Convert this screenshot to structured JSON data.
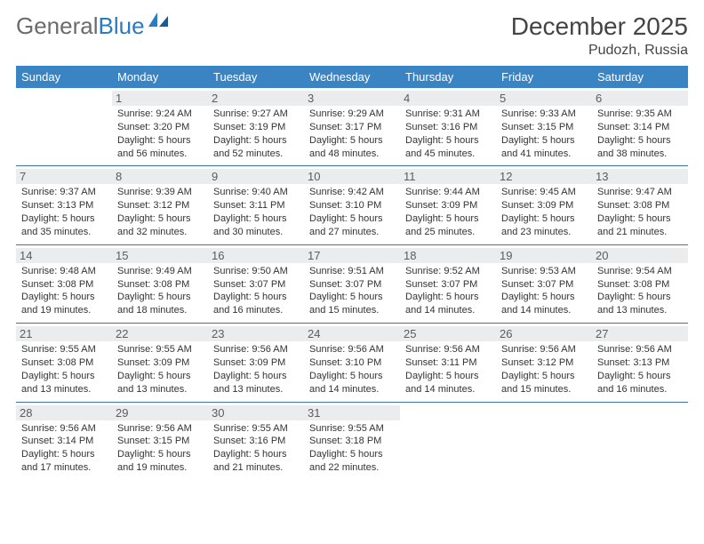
{
  "brand": {
    "part1": "General",
    "part2": "Blue"
  },
  "title": "December 2025",
  "location": "Pudozh, Russia",
  "header_bg": "#3b84c4",
  "header_color": "#ffffff",
  "daynum_bg": "#ebeced",
  "daynum_color": "#5c5c5c",
  "border_color": "#3b74a8",
  "text_color": "#333333",
  "font_size_cell": 11,
  "dayNames": [
    "Sunday",
    "Monday",
    "Tuesday",
    "Wednesday",
    "Thursday",
    "Friday",
    "Saturday"
  ],
  "weeks": [
    [
      {
        "n": "",
        "l1": "",
        "l2": "",
        "l3": "",
        "l4": ""
      },
      {
        "n": "1",
        "l1": "Sunrise: 9:24 AM",
        "l2": "Sunset: 3:20 PM",
        "l3": "Daylight: 5 hours",
        "l4": "and 56 minutes."
      },
      {
        "n": "2",
        "l1": "Sunrise: 9:27 AM",
        "l2": "Sunset: 3:19 PM",
        "l3": "Daylight: 5 hours",
        "l4": "and 52 minutes."
      },
      {
        "n": "3",
        "l1": "Sunrise: 9:29 AM",
        "l2": "Sunset: 3:17 PM",
        "l3": "Daylight: 5 hours",
        "l4": "and 48 minutes."
      },
      {
        "n": "4",
        "l1": "Sunrise: 9:31 AM",
        "l2": "Sunset: 3:16 PM",
        "l3": "Daylight: 5 hours",
        "l4": "and 45 minutes."
      },
      {
        "n": "5",
        "l1": "Sunrise: 9:33 AM",
        "l2": "Sunset: 3:15 PM",
        "l3": "Daylight: 5 hours",
        "l4": "and 41 minutes."
      },
      {
        "n": "6",
        "l1": "Sunrise: 9:35 AM",
        "l2": "Sunset: 3:14 PM",
        "l3": "Daylight: 5 hours",
        "l4": "and 38 minutes."
      }
    ],
    [
      {
        "n": "7",
        "l1": "Sunrise: 9:37 AM",
        "l2": "Sunset: 3:13 PM",
        "l3": "Daylight: 5 hours",
        "l4": "and 35 minutes."
      },
      {
        "n": "8",
        "l1": "Sunrise: 9:39 AM",
        "l2": "Sunset: 3:12 PM",
        "l3": "Daylight: 5 hours",
        "l4": "and 32 minutes."
      },
      {
        "n": "9",
        "l1": "Sunrise: 9:40 AM",
        "l2": "Sunset: 3:11 PM",
        "l3": "Daylight: 5 hours",
        "l4": "and 30 minutes."
      },
      {
        "n": "10",
        "l1": "Sunrise: 9:42 AM",
        "l2": "Sunset: 3:10 PM",
        "l3": "Daylight: 5 hours",
        "l4": "and 27 minutes."
      },
      {
        "n": "11",
        "l1": "Sunrise: 9:44 AM",
        "l2": "Sunset: 3:09 PM",
        "l3": "Daylight: 5 hours",
        "l4": "and 25 minutes."
      },
      {
        "n": "12",
        "l1": "Sunrise: 9:45 AM",
        "l2": "Sunset: 3:09 PM",
        "l3": "Daylight: 5 hours",
        "l4": "and 23 minutes."
      },
      {
        "n": "13",
        "l1": "Sunrise: 9:47 AM",
        "l2": "Sunset: 3:08 PM",
        "l3": "Daylight: 5 hours",
        "l4": "and 21 minutes."
      }
    ],
    [
      {
        "n": "14",
        "l1": "Sunrise: 9:48 AM",
        "l2": "Sunset: 3:08 PM",
        "l3": "Daylight: 5 hours",
        "l4": "and 19 minutes."
      },
      {
        "n": "15",
        "l1": "Sunrise: 9:49 AM",
        "l2": "Sunset: 3:08 PM",
        "l3": "Daylight: 5 hours",
        "l4": "and 18 minutes."
      },
      {
        "n": "16",
        "l1": "Sunrise: 9:50 AM",
        "l2": "Sunset: 3:07 PM",
        "l3": "Daylight: 5 hours",
        "l4": "and 16 minutes."
      },
      {
        "n": "17",
        "l1": "Sunrise: 9:51 AM",
        "l2": "Sunset: 3:07 PM",
        "l3": "Daylight: 5 hours",
        "l4": "and 15 minutes."
      },
      {
        "n": "18",
        "l1": "Sunrise: 9:52 AM",
        "l2": "Sunset: 3:07 PM",
        "l3": "Daylight: 5 hours",
        "l4": "and 14 minutes."
      },
      {
        "n": "19",
        "l1": "Sunrise: 9:53 AM",
        "l2": "Sunset: 3:07 PM",
        "l3": "Daylight: 5 hours",
        "l4": "and 14 minutes."
      },
      {
        "n": "20",
        "l1": "Sunrise: 9:54 AM",
        "l2": "Sunset: 3:08 PM",
        "l3": "Daylight: 5 hours",
        "l4": "and 13 minutes."
      }
    ],
    [
      {
        "n": "21",
        "l1": "Sunrise: 9:55 AM",
        "l2": "Sunset: 3:08 PM",
        "l3": "Daylight: 5 hours",
        "l4": "and 13 minutes."
      },
      {
        "n": "22",
        "l1": "Sunrise: 9:55 AM",
        "l2": "Sunset: 3:09 PM",
        "l3": "Daylight: 5 hours",
        "l4": "and 13 minutes."
      },
      {
        "n": "23",
        "l1": "Sunrise: 9:56 AM",
        "l2": "Sunset: 3:09 PM",
        "l3": "Daylight: 5 hours",
        "l4": "and 13 minutes."
      },
      {
        "n": "24",
        "l1": "Sunrise: 9:56 AM",
        "l2": "Sunset: 3:10 PM",
        "l3": "Daylight: 5 hours",
        "l4": "and 14 minutes."
      },
      {
        "n": "25",
        "l1": "Sunrise: 9:56 AM",
        "l2": "Sunset: 3:11 PM",
        "l3": "Daylight: 5 hours",
        "l4": "and 14 minutes."
      },
      {
        "n": "26",
        "l1": "Sunrise: 9:56 AM",
        "l2": "Sunset: 3:12 PM",
        "l3": "Daylight: 5 hours",
        "l4": "and 15 minutes."
      },
      {
        "n": "27",
        "l1": "Sunrise: 9:56 AM",
        "l2": "Sunset: 3:13 PM",
        "l3": "Daylight: 5 hours",
        "l4": "and 16 minutes."
      }
    ],
    [
      {
        "n": "28",
        "l1": "Sunrise: 9:56 AM",
        "l2": "Sunset: 3:14 PM",
        "l3": "Daylight: 5 hours",
        "l4": "and 17 minutes."
      },
      {
        "n": "29",
        "l1": "Sunrise: 9:56 AM",
        "l2": "Sunset: 3:15 PM",
        "l3": "Daylight: 5 hours",
        "l4": "and 19 minutes."
      },
      {
        "n": "30",
        "l1": "Sunrise: 9:55 AM",
        "l2": "Sunset: 3:16 PM",
        "l3": "Daylight: 5 hours",
        "l4": "and 21 minutes."
      },
      {
        "n": "31",
        "l1": "Sunrise: 9:55 AM",
        "l2": "Sunset: 3:18 PM",
        "l3": "Daylight: 5 hours",
        "l4": "and 22 minutes."
      },
      {
        "n": "",
        "l1": "",
        "l2": "",
        "l3": "",
        "l4": ""
      },
      {
        "n": "",
        "l1": "",
        "l2": "",
        "l3": "",
        "l4": ""
      },
      {
        "n": "",
        "l1": "",
        "l2": "",
        "l3": "",
        "l4": ""
      }
    ]
  ]
}
